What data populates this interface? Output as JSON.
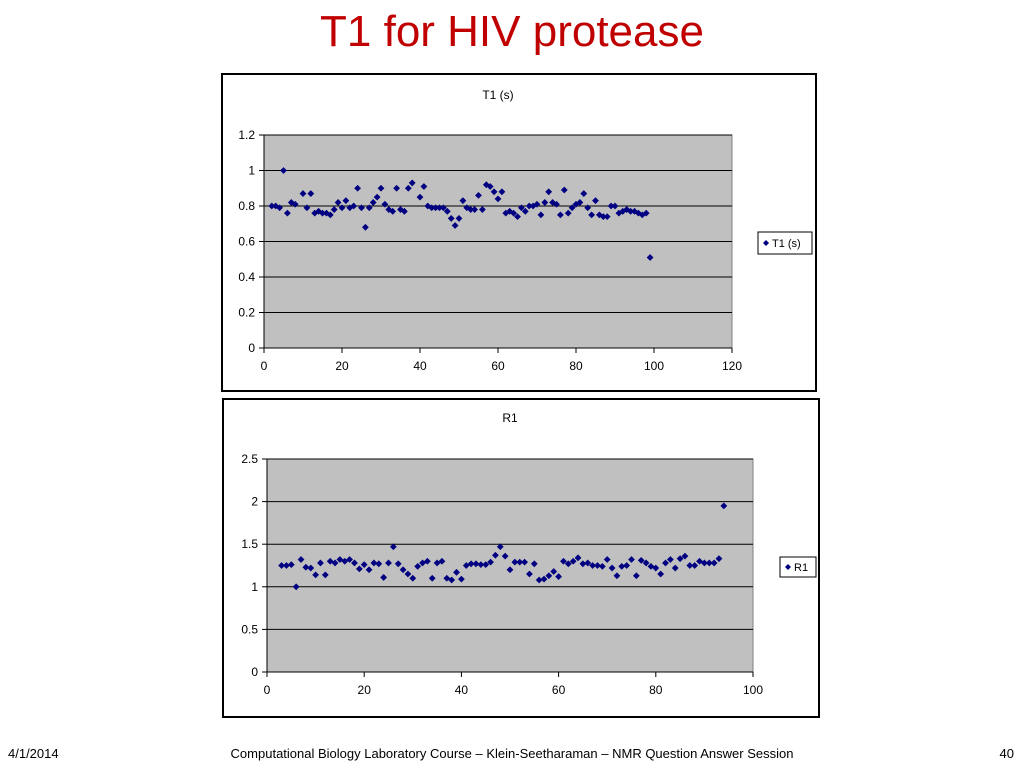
{
  "slide": {
    "title": "T1 for HIV protease",
    "footer_date": "4/1/2014",
    "footer_center": "Computational Biology Laboratory Course – Klein-Seetharaman – NMR Question Answer Session",
    "footer_page": "40",
    "title_color": "#c00000"
  },
  "chart_data": [
    {
      "type": "scatter",
      "title": "T1 (s)",
      "xlim": [
        0,
        120
      ],
      "ylim": [
        0,
        1.2
      ],
      "xticks": [
        0,
        20,
        40,
        60,
        80,
        100,
        120
      ],
      "yticks": [
        0,
        0.2,
        0.4,
        0.6,
        0.8,
        1,
        1.2
      ],
      "xtick_labels": [
        "0",
        "20",
        "40",
        "60",
        "80",
        "100",
        "120"
      ],
      "ytick_labels": [
        "0",
        "0.2",
        "0.4",
        "0.6",
        "0.8",
        "1",
        "1.2"
      ],
      "grid": "horizontal",
      "legend": "right",
      "plot_background": "#c0c0c0",
      "marker_color": "#000080",
      "series": [
        {
          "name": "T1 (s)",
          "x": [
            2,
            3,
            4,
            5,
            6,
            7,
            8,
            10,
            11,
            12,
            13,
            14,
            15,
            16,
            17,
            18,
            19,
            20,
            21,
            22,
            23,
            24,
            25,
            26,
            27,
            28,
            29,
            30,
            31,
            32,
            33,
            34,
            35,
            36,
            37,
            38,
            40,
            41,
            42,
            43,
            44,
            45,
            46,
            47,
            48,
            49,
            50,
            51,
            52,
            53,
            54,
            55,
            56,
            57,
            58,
            59,
            60,
            61,
            62,
            63,
            64,
            65,
            66,
            67,
            68,
            69,
            70,
            71,
            72,
            73,
            74,
            75,
            76,
            77,
            78,
            79,
            80,
            81,
            82,
            83,
            84,
            85,
            86,
            87,
            88,
            89,
            90,
            91,
            92,
            93,
            94,
            95,
            96,
            97,
            98,
            99
          ],
          "y": [
            0.8,
            0.8,
            0.79,
            1.0,
            0.76,
            0.82,
            0.81,
            0.87,
            0.79,
            0.87,
            0.76,
            0.77,
            0.76,
            0.76,
            0.75,
            0.78,
            0.82,
            0.79,
            0.83,
            0.79,
            0.8,
            0.9,
            0.79,
            0.68,
            0.79,
            0.82,
            0.85,
            0.9,
            0.81,
            0.78,
            0.77,
            0.9,
            0.78,
            0.77,
            0.9,
            0.93,
            0.85,
            0.91,
            0.8,
            0.79,
            0.79,
            0.79,
            0.79,
            0.77,
            0.73,
            0.69,
            0.73,
            0.83,
            0.79,
            0.78,
            0.78,
            0.86,
            0.78,
            0.92,
            0.91,
            0.88,
            0.84,
            0.88,
            0.76,
            0.77,
            0.76,
            0.74,
            0.79,
            0.77,
            0.8,
            0.8,
            0.81,
            0.75,
            0.82,
            0.88,
            0.82,
            0.81,
            0.75,
            0.89,
            0.76,
            0.79,
            0.81,
            0.82,
            0.87,
            0.79,
            0.75,
            0.83,
            0.75,
            0.74,
            0.74,
            0.8,
            0.8,
            0.76,
            0.77,
            0.78,
            0.77,
            0.77,
            0.76,
            0.75,
            0.76,
            0.51
          ]
        }
      ]
    },
    {
      "type": "scatter",
      "title": "R1",
      "xlim": [
        0,
        100
      ],
      "ylim": [
        0,
        2.5
      ],
      "xticks": [
        0,
        20,
        40,
        60,
        80,
        100
      ],
      "yticks": [
        0,
        0.5,
        1,
        1.5,
        2,
        2.5
      ],
      "xtick_labels": [
        "0",
        "20",
        "40",
        "60",
        "80",
        "100"
      ],
      "ytick_labels": [
        "0",
        "0.5",
        "1",
        "1.5",
        "2",
        "2.5"
      ],
      "grid": "horizontal",
      "legend": "right",
      "plot_background": "#c0c0c0",
      "marker_color": "#000080",
      "series": [
        {
          "name": "R1",
          "x": [
            3,
            4,
            5,
            6,
            7,
            8,
            9,
            10,
            11,
            12,
            13,
            14,
            15,
            16,
            17,
            18,
            19,
            20,
            21,
            22,
            23,
            24,
            25,
            26,
            27,
            28,
            29,
            30,
            31,
            32,
            33,
            34,
            35,
            36,
            37,
            38,
            39,
            40,
            41,
            42,
            43,
            44,
            45,
            46,
            47,
            48,
            49,
            50,
            51,
            52,
            53,
            54,
            55,
            56,
            57,
            58,
            59,
            60,
            61,
            62,
            63,
            64,
            65,
            66,
            67,
            68,
            69,
            70,
            71,
            72,
            73,
            74,
            75,
            76,
            77,
            78,
            79,
            80,
            81,
            82,
            83,
            84,
            85,
            86,
            87,
            88,
            89,
            90,
            91,
            92,
            93,
            94
          ],
          "y": [
            1.25,
            1.25,
            1.26,
            1.0,
            1.32,
            1.23,
            1.22,
            1.14,
            1.28,
            1.14,
            1.3,
            1.28,
            1.32,
            1.3,
            1.32,
            1.28,
            1.21,
            1.26,
            1.2,
            1.28,
            1.27,
            1.11,
            1.28,
            1.47,
            1.27,
            1.2,
            1.15,
            1.1,
            1.24,
            1.28,
            1.3,
            1.1,
            1.28,
            1.3,
            1.1,
            1.08,
            1.17,
            1.09,
            1.25,
            1.27,
            1.27,
            1.26,
            1.26,
            1.29,
            1.37,
            1.47,
            1.36,
            1.2,
            1.29,
            1.29,
            1.29,
            1.15,
            1.27,
            1.08,
            1.09,
            1.13,
            1.18,
            1.12,
            1.3,
            1.27,
            1.3,
            1.34,
            1.27,
            1.28,
            1.25,
            1.25,
            1.24,
            1.32,
            1.22,
            1.13,
            1.24,
            1.25,
            1.32,
            1.13,
            1.31,
            1.28,
            1.24,
            1.22,
            1.15,
            1.28,
            1.32,
            1.22,
            1.33,
            1.36,
            1.25,
            1.25,
            1.3,
            1.28,
            1.28,
            1.28,
            1.33,
            1.95
          ]
        }
      ]
    }
  ]
}
